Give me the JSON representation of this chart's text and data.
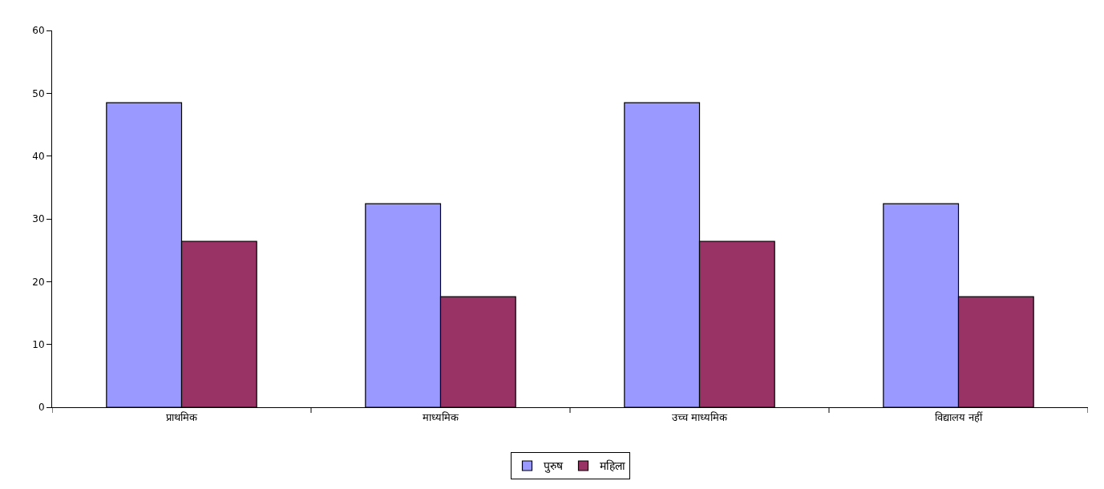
{
  "chart_data": {
    "type": "bar",
    "categories": [
      "प्राथमिक",
      "माध्यमिक",
      "उच्च माध्यमिक",
      "विद्यालय नहीं"
    ],
    "series": [
      {
        "name": "पुरुष",
        "color": "#9999ff",
        "values": [
          48.5,
          32.4,
          48.5,
          32.4
        ]
      },
      {
        "name": "महिला",
        "color": "#993366",
        "values": [
          26.4,
          17.6,
          26.4,
          17.6
        ]
      }
    ],
    "ylim": [
      0,
      60
    ],
    "yticks": [
      0,
      10,
      20,
      30,
      40,
      50,
      60
    ],
    "legend": "bottom"
  }
}
